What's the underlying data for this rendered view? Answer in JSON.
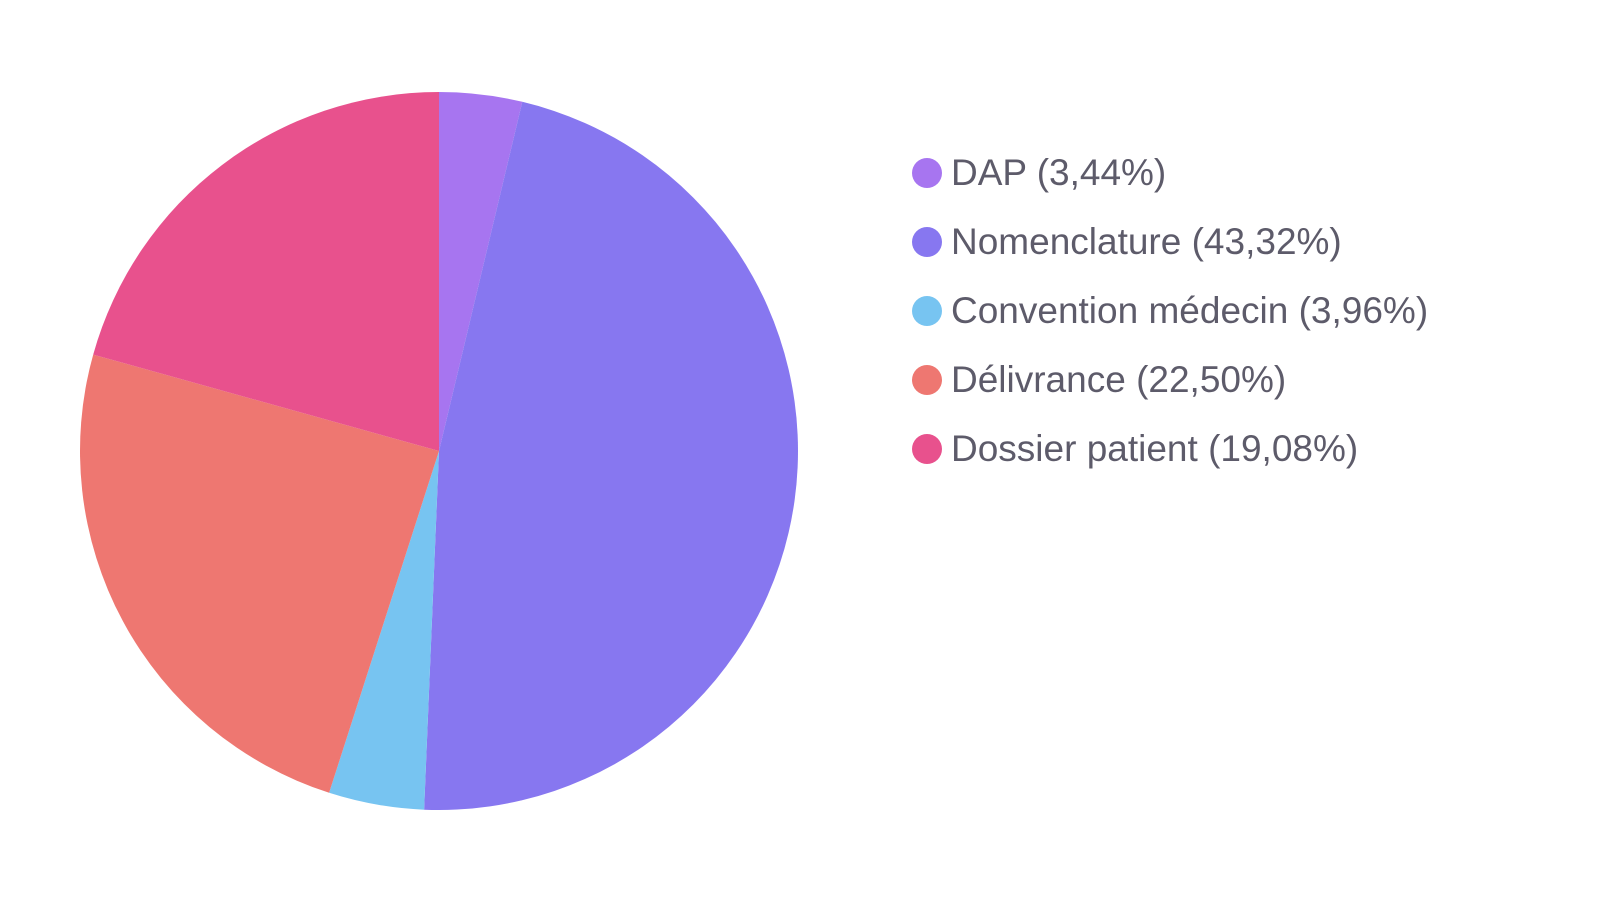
{
  "chart_data": {
    "type": "pie",
    "title": "",
    "legend_position": "right",
    "start_angle_deg": 0,
    "direction": "clockwise",
    "slices": [
      {
        "name": "DAP",
        "value": 3.44,
        "label": "DAP (3,44%)",
        "color": "#a775f0"
      },
      {
        "name": "Nomenclature",
        "value": 43.32,
        "label": "Nomenclature (43,32%)",
        "color": "#8777f0"
      },
      {
        "name": "Convention médecin",
        "value": 3.96,
        "label": "Convention médecin (3,96%)",
        "color": "#77c4f1"
      },
      {
        "name": "Délivrance",
        "value": 22.5,
        "label": "Délivrance (22,50%)",
        "color": "#ee7771"
      },
      {
        "name": "Dossier patient",
        "value": 19.08,
        "label": "Dossier patient (19,08%)",
        "color": "#e8518d"
      }
    ]
  }
}
